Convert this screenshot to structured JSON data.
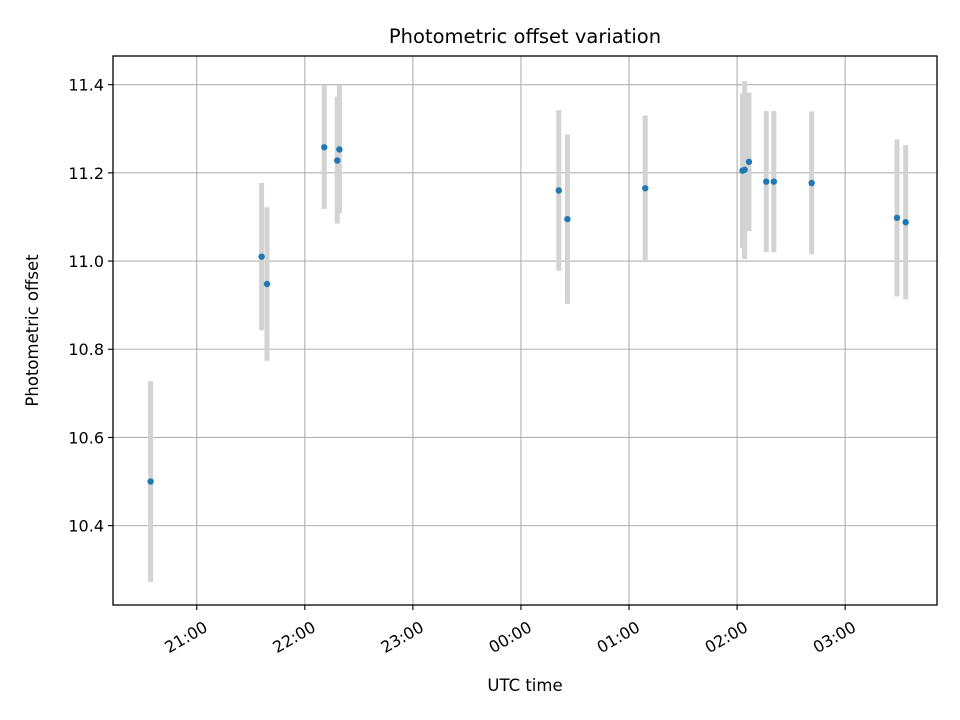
{
  "chart_data": {
    "type": "scatter",
    "title": "Photometric offset variation",
    "xlabel": "UTC time",
    "ylabel": "Photometric offset",
    "x_unit": "hours",
    "xlim": [
      20.225,
      27.85
    ],
    "ylim": [
      10.22,
      11.465
    ],
    "x_ticks": [
      {
        "value": 21,
        "label": "21:00"
      },
      {
        "value": 22,
        "label": "22:00"
      },
      {
        "value": 23,
        "label": "23:00"
      },
      {
        "value": 24,
        "label": "00:00"
      },
      {
        "value": 25,
        "label": "01:00"
      },
      {
        "value": 26,
        "label": "02:00"
      },
      {
        "value": 27,
        "label": "03:00"
      }
    ],
    "y_ticks": [
      {
        "value": 10.4,
        "label": "10.4"
      },
      {
        "value": 10.6,
        "label": "10.6"
      },
      {
        "value": 10.8,
        "label": "10.8"
      },
      {
        "value": 11.0,
        "label": "11.0"
      },
      {
        "value": 11.2,
        "label": "11.2"
      },
      {
        "value": 11.4,
        "label": "11.4"
      }
    ],
    "grid": true,
    "colors": {
      "points": "#1f77b4",
      "errorbars": "#d3d3d3",
      "grid": "#b0b0b0",
      "axes": "#000000"
    },
    "points": [
      {
        "x": 20.573,
        "y": 10.5,
        "err_low": 10.272,
        "err_high": 10.728
      },
      {
        "x": 21.6,
        "y": 11.01,
        "err_low": 10.843,
        "err_high": 11.177
      },
      {
        "x": 21.65,
        "y": 10.948,
        "err_low": 10.774,
        "err_high": 11.122
      },
      {
        "x": 22.18,
        "y": 11.258,
        "err_low": 11.118,
        "err_high": 11.398
      },
      {
        "x": 22.3,
        "y": 11.228,
        "err_low": 11.085,
        "err_high": 11.373
      },
      {
        "x": 22.32,
        "y": 11.253,
        "err_low": 11.108,
        "err_high": 11.398
      },
      {
        "x": 24.35,
        "y": 11.16,
        "err_low": 10.978,
        "err_high": 11.342
      },
      {
        "x": 24.43,
        "y": 11.095,
        "err_low": 10.903,
        "err_high": 11.287
      },
      {
        "x": 25.15,
        "y": 11.165,
        "err_low": 11.0,
        "err_high": 11.33
      },
      {
        "x": 26.05,
        "y": 11.205,
        "err_low": 11.03,
        "err_high": 11.38
      },
      {
        "x": 26.07,
        "y": 11.207,
        "err_low": 11.005,
        "err_high": 11.408
      },
      {
        "x": 26.11,
        "y": 11.225,
        "err_low": 11.068,
        "err_high": 11.382
      },
      {
        "x": 26.27,
        "y": 11.18,
        "err_low": 11.02,
        "err_high": 11.34
      },
      {
        "x": 26.34,
        "y": 11.18,
        "err_low": 11.02,
        "err_high": 11.34
      },
      {
        "x": 26.69,
        "y": 11.177,
        "err_low": 11.015,
        "err_high": 11.339
      },
      {
        "x": 27.48,
        "y": 11.098,
        "err_low": 10.92,
        "err_high": 11.276
      },
      {
        "x": 27.56,
        "y": 11.088,
        "err_low": 10.913,
        "err_high": 11.263
      }
    ]
  }
}
